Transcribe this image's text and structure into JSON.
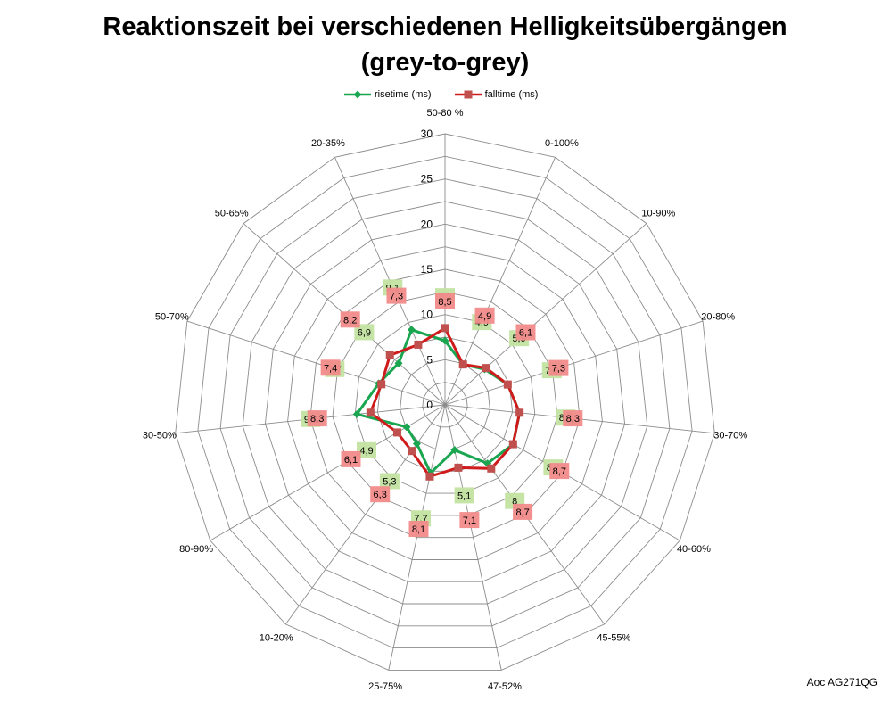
{
  "chart_data": {
    "type": "radar",
    "title": "Reaktionszeit bei verschiedenen Helligkeitsübergängen",
    "subtitle": "(grey-to-grey)",
    "categories": [
      "50-80 %",
      "0-100%",
      "10-90%",
      "20-80%",
      "30-70%",
      "40-60%",
      "45-55%",
      "47-52%",
      "25-75%",
      "10-20%",
      "80-90%",
      "30-50%",
      "50-70%",
      "50-65%",
      "20-35%"
    ],
    "rlim": [
      0,
      30
    ],
    "ticks": [
      0,
      5,
      10,
      15,
      20,
      25,
      30
    ],
    "grid": true,
    "legend_position": "top",
    "series": [
      {
        "name": "risetime (ms)",
        "color": "#1aa650",
        "label_bg": "#c4e3a2",
        "marker": "diamond",
        "values": [
          7.1,
          4.9,
          5.9,
          7.3,
          8.3,
          8.7,
          8.0,
          5.1,
          7.7,
          5.3,
          4.9,
          9.8,
          7.7,
          6.9,
          9.1
        ],
        "labels": [
          "7,1",
          "4,9",
          "5,9",
          "7,3",
          "8,3",
          "8,7",
          "8",
          "5,1",
          "7,7",
          "5,3",
          "4,9",
          "9,8",
          "7,7",
          "6,9",
          "9,1"
        ]
      },
      {
        "name": "falltime (ms)",
        "color": "#cf1b1b",
        "label_bg": "#f28b8b",
        "marker": "square",
        "values": [
          8.5,
          4.9,
          6.1,
          7.3,
          8.3,
          8.7,
          8.7,
          7.1,
          8.1,
          6.3,
          6.1,
          8.3,
          7.4,
          8.2,
          7.3
        ],
        "labels": [
          "8,5",
          "4,9",
          "6,1",
          "7,3",
          "8,3",
          "8,7",
          "8,7",
          "7,1",
          "8,1",
          "6,3",
          "6,1",
          "8,3",
          "7,4",
          "8,2",
          "7,3"
        ]
      }
    ]
  },
  "credit": "Aoc AG271QG"
}
